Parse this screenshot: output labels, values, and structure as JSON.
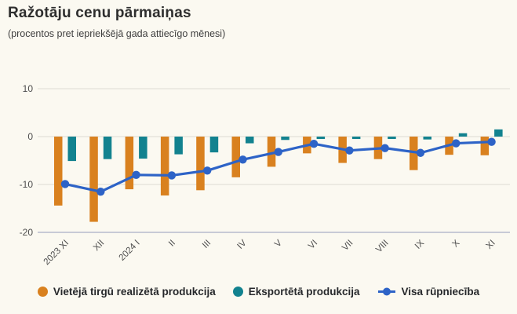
{
  "page": {
    "title": "Ražotāju cenu pārmaiņas",
    "subtitle": "(procentos pret iepriekšējā gada attiecīgo mēnesi)",
    "background_color": "#FBF9F1"
  },
  "chart_data": {
    "type": "bar",
    "subtype": "grouped bars with line overlay (combo)",
    "title": "Ražotāju cenu pārmaiņas",
    "subtitle": "(procentos pret iepriekšējā gada attiecīgo mēnesi)",
    "xlabel": "",
    "ylabel": "",
    "categories": [
      "2023 XI",
      "XII",
      "2024 I",
      "II",
      "III",
      "IV",
      "V",
      "VI",
      "VII",
      "VIII",
      "IX",
      "X",
      "XI"
    ],
    "series": [
      {
        "name": "Vietējā tirgū realizētā produkcija",
        "type": "bar",
        "color": "#D9811F",
        "values": [
          -14.4,
          -17.8,
          -11.0,
          -12.3,
          -11.2,
          -8.5,
          -6.3,
          -3.5,
          -5.5,
          -4.7,
          -7.0,
          -3.8,
          -3.9
        ]
      },
      {
        "name": "Eksportētā produkcija",
        "type": "bar",
        "color": "#12828F",
        "values": [
          -5.1,
          -4.7,
          -4.6,
          -3.7,
          -3.3,
          -1.4,
          -0.7,
          -0.3,
          -0.5,
          -0.4,
          -0.6,
          0.7,
          1.5
        ]
      },
      {
        "name": "Visa rūpniecība",
        "type": "line",
        "color": "#2D63C7",
        "values": [
          -9.9,
          -11.5,
          -8.0,
          -8.1,
          -7.1,
          -4.8,
          -3.2,
          -1.5,
          -2.9,
          -2.4,
          -3.4,
          -1.4,
          -1.1
        ]
      }
    ],
    "yticks": [
      "10",
      "0",
      "-10",
      "-20"
    ],
    "ytick_values": [
      10,
      0,
      -10,
      -20
    ],
    "ylim": [
      -20,
      11.4
    ],
    "grid": true,
    "grid_color": "#DEDCD4",
    "axis_bottom_color": "#B7BBCE",
    "tick_label_color": "#4D4D4D",
    "legend_position": "bottom",
    "legend_text_color": "#26282B"
  }
}
